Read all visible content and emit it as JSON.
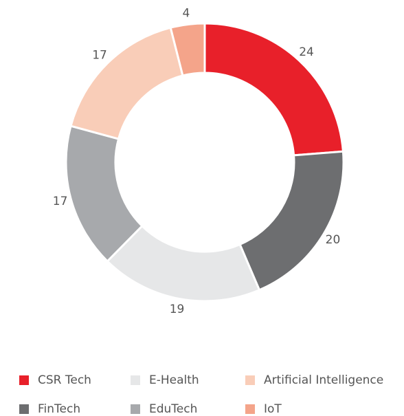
{
  "chart_data": {
    "type": "pie",
    "categories": [
      "CSR Tech",
      "FinTech",
      "E-Health",
      "EduTech",
      "Artificial Intelligence",
      "IoT"
    ],
    "values": [
      24,
      20,
      19,
      17,
      17,
      4
    ],
    "colors": [
      "#e8202a",
      "#6d6e70",
      "#e6e7e8",
      "#a7a9ac",
      "#f9cdb8",
      "#f4a48a"
    ],
    "donut": true
  }
}
